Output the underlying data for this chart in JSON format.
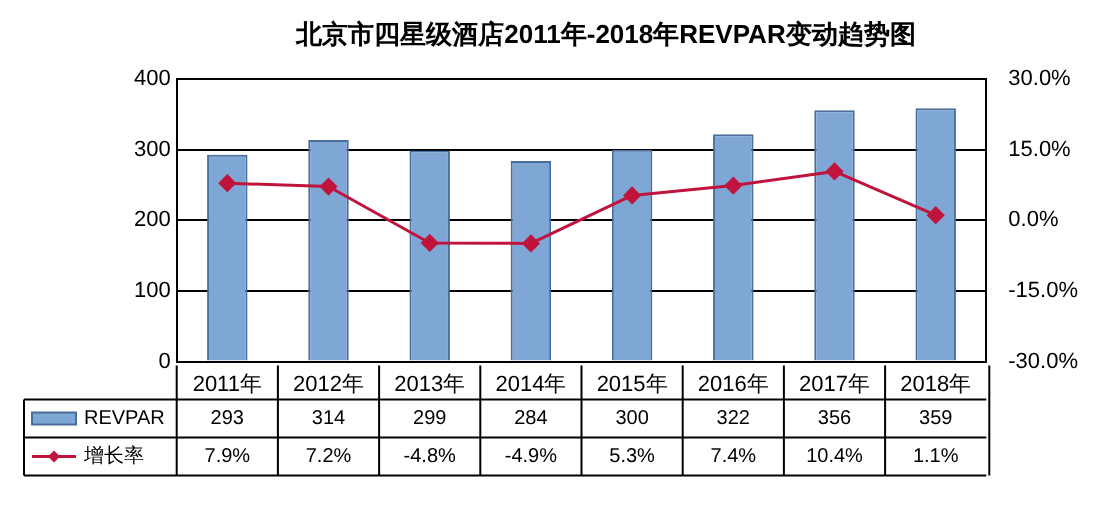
{
  "chart_data": {
    "type": "bar",
    "title": "北京市四星级酒店2011年-2018年REVPAR变动趋势图",
    "categories": [
      "2011年",
      "2012年",
      "2013年",
      "2014年",
      "2015年",
      "2016年",
      "2017年",
      "2018年"
    ],
    "series": [
      {
        "name": "REVPAR",
        "color": "#7fa7d6",
        "values": [
          293,
          314,
          299,
          284,
          300,
          322,
          356,
          359
        ]
      },
      {
        "name": "增长率",
        "type": "line",
        "axis": "y2",
        "color": "#c0143c",
        "marker": "diamond",
        "values": [
          7.9,
          7.2,
          -4.8,
          -4.9,
          5.3,
          7.4,
          10.4,
          1.1
        ],
        "value_labels": [
          "7.9%",
          "7.2%",
          "-4.8%",
          "-4.9%",
          "5.3%",
          "7.4%",
          "10.4%",
          "1.1%"
        ]
      }
    ],
    "ylim": [
      0,
      400
    ],
    "yticks": [
      0,
      100,
      200,
      300,
      400
    ],
    "y2lim": [
      -30,
      30
    ],
    "y2ticks": [
      {
        "value": -30,
        "label": "-30.0%"
      },
      {
        "value": -15,
        "label": "-15.0%"
      },
      {
        "value": 0,
        "label": "0.0%"
      },
      {
        "value": 15,
        "label": "15.0%"
      },
      {
        "value": 30,
        "label": "30.0%"
      }
    ],
    "grid": "y",
    "legend": "bottom",
    "data_labels": true
  }
}
